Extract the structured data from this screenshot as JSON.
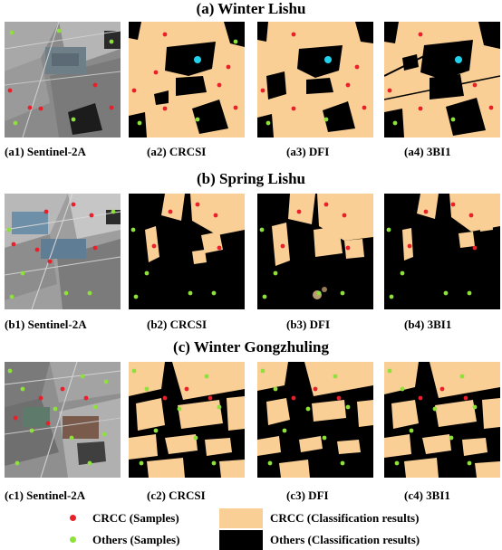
{
  "titles": {
    "a": "(a) Winter Lishu",
    "b": "(b) Spring Lishu",
    "c": "(c) Winter Gongzhuling"
  },
  "captions": {
    "a1": "(a1) Sentinel-2A",
    "a2": "(a2) CRCSI",
    "a3": "(a3) DFI",
    "a4": "(a4) 3BI1",
    "b1": "(b1) Sentinel-2A",
    "b2": "(b2) CRCSI",
    "b3": "(b3) DFI",
    "b4": "(b4) 3BI1",
    "c1": "(c1) Sentinel-2A",
    "c2": "(c2) CRCSI",
    "c3": "(c3) DFI",
    "c4": "(c4) 3BI1"
  },
  "legend": {
    "crcc_samples": "CRCC (Samples)",
    "others_samples": "Others (Samples)",
    "crcc_results": "CRCC (Classification results)",
    "others_results": "Others (Classification results)"
  },
  "colors": {
    "crcc_fill": "#f9cf95",
    "others_fill": "#000000",
    "crcc_sample": "#e8202a",
    "others_sample": "#8ee03a",
    "highlight": "#22d3ee"
  }
}
